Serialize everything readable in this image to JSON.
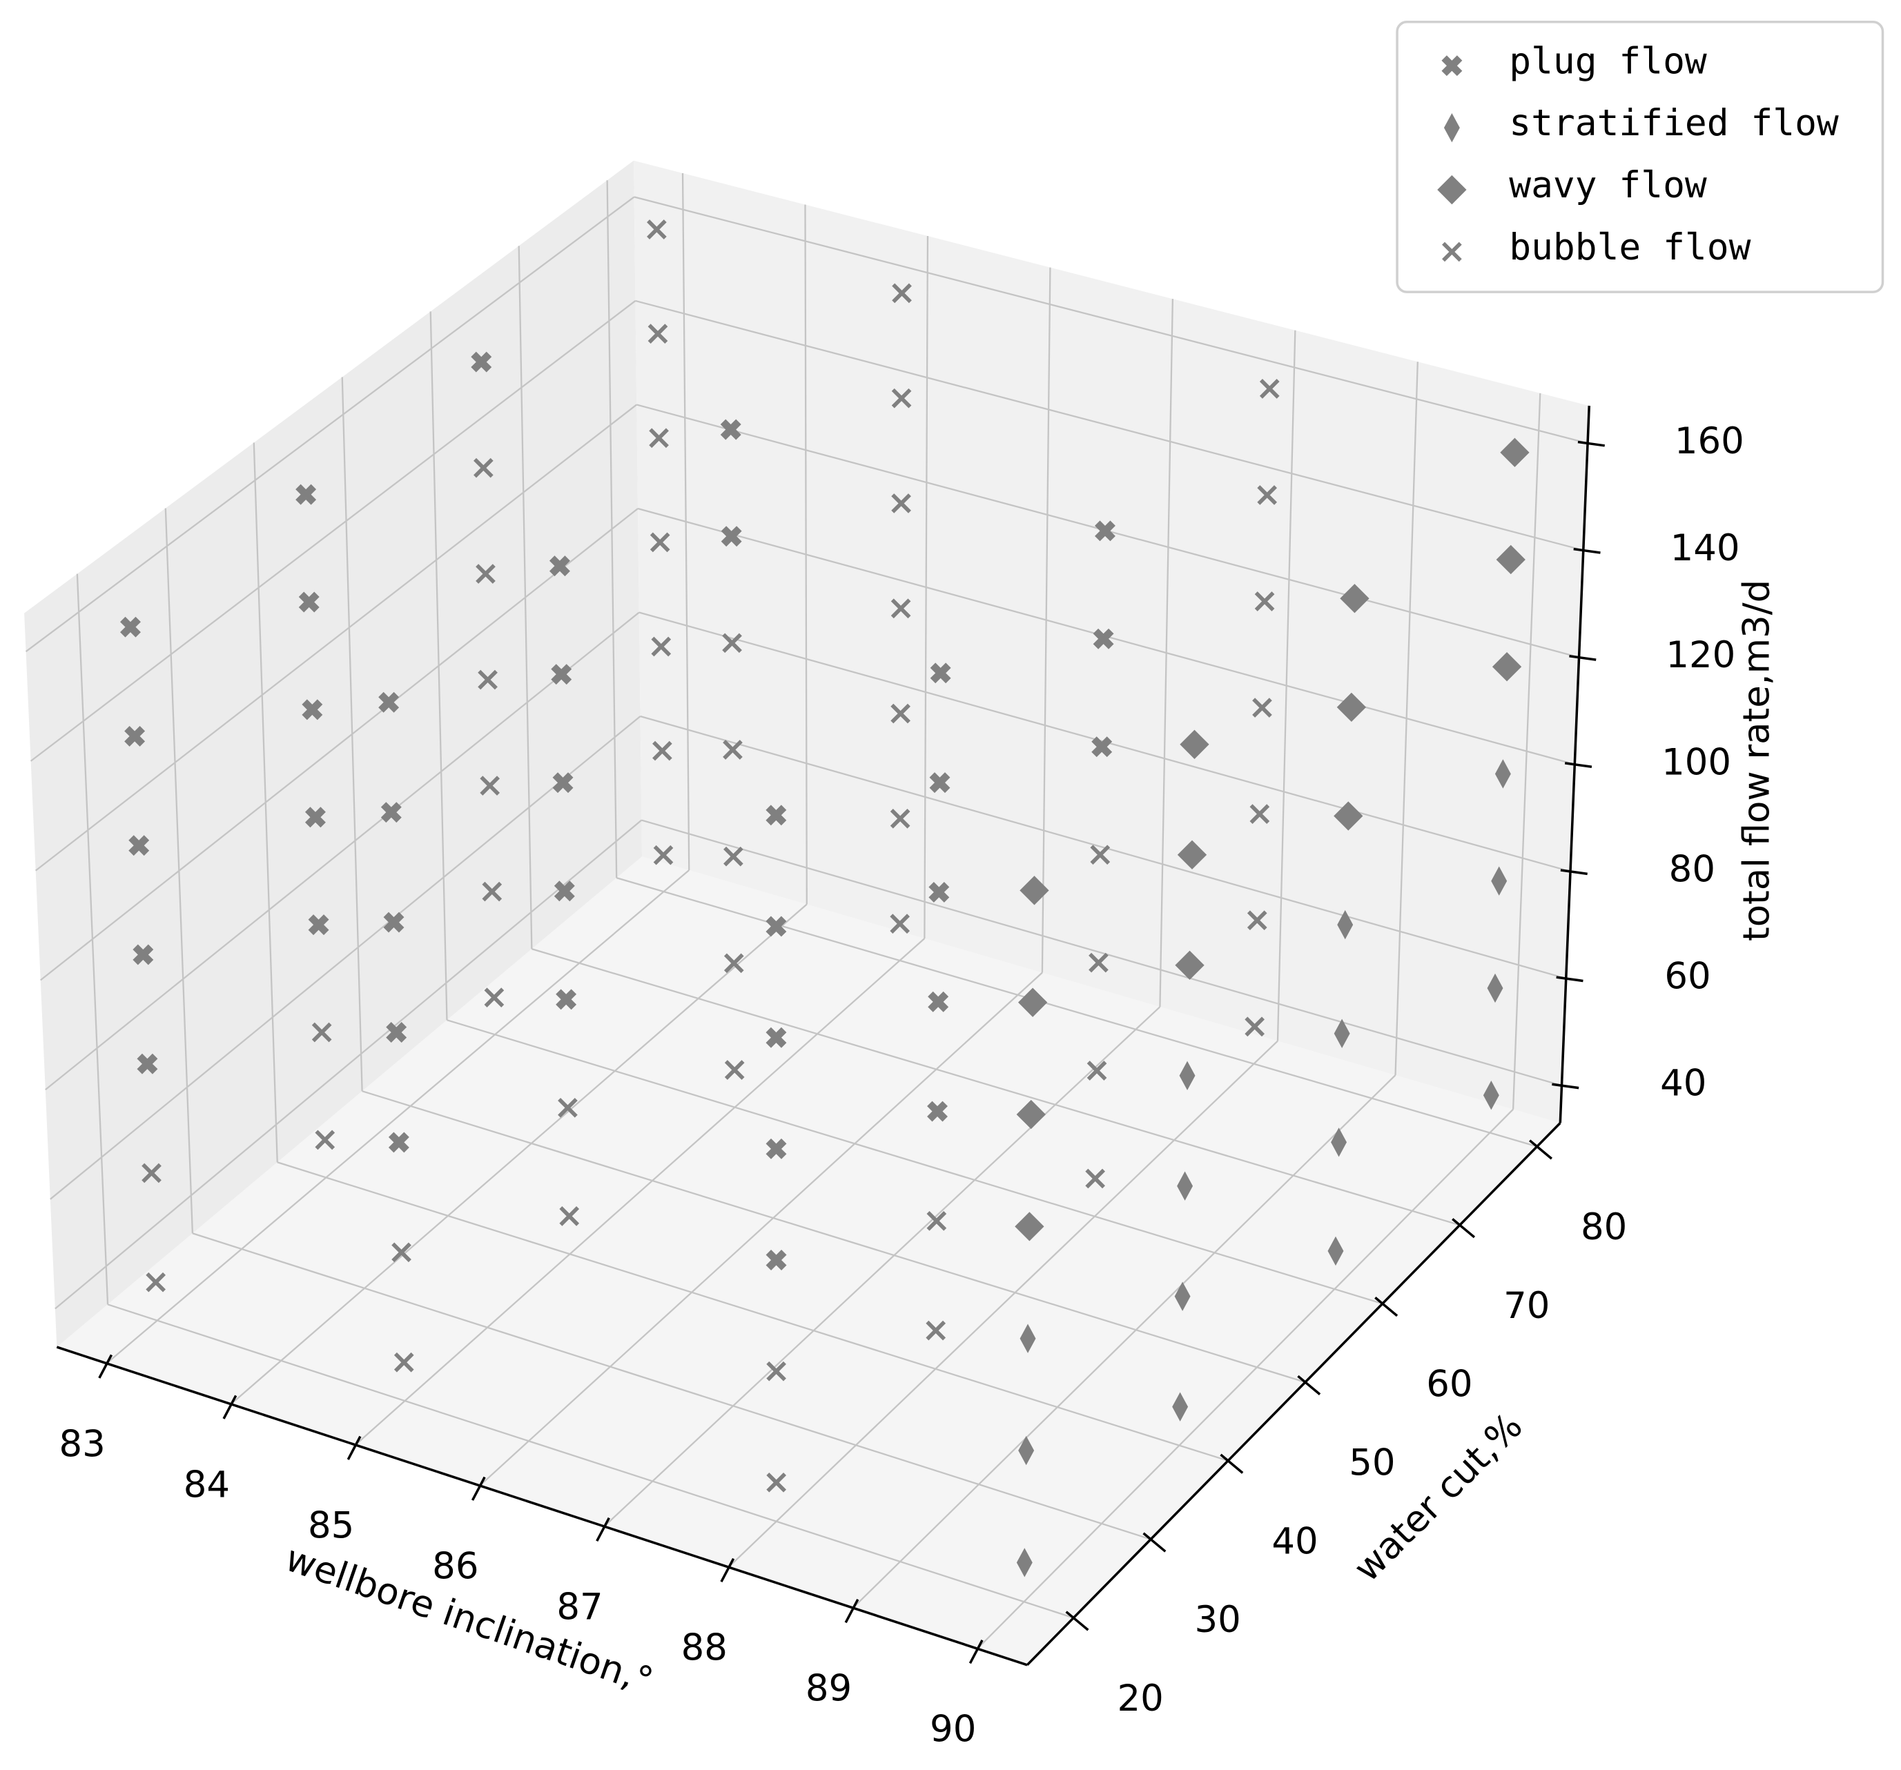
{
  "chart_data": {
    "type": "scatter3d",
    "xlabel": "wellbore inclination,°",
    "ylabel": "water cut,%",
    "zlabel": "total flow rate,m3/d",
    "xlim": [
      82.6,
      90.4
    ],
    "ylim": [
      14,
      83
    ],
    "zlim": [
      33,
      167
    ],
    "xticks": [
      83,
      84,
      85,
      86,
      87,
      88,
      89,
      90
    ],
    "yticks": [
      20,
      30,
      40,
      50,
      60,
      70,
      80
    ],
    "zticks": [
      40,
      60,
      80,
      100,
      120,
      140,
      160
    ],
    "grid": true,
    "legend": "upper right",
    "series": [
      {
        "name": "plug flow",
        "color": "#808080",
        "marker": "X",
        "x": [
          83,
          83,
          83,
          83,
          83,
          85,
          85,
          85,
          85,
          85,
          88,
          88,
          88,
          88,
          88,
          83,
          83,
          83,
          83,
          83,
          85,
          85,
          85,
          85,
          85,
          88,
          88,
          88,
          88,
          88,
          83,
          85,
          85,
          88,
          88,
          88
        ],
        "y": [
          20,
          20,
          20,
          20,
          20,
          20,
          20,
          20,
          20,
          20,
          20,
          20,
          20,
          20,
          20,
          40,
          40,
          40,
          40,
          40,
          40,
          40,
          40,
          40,
          40,
          40,
          40,
          40,
          40,
          40,
          60,
          60,
          60,
          60,
          60,
          60
        ],
        "z": [
          80,
          100,
          120,
          140,
          160,
          80,
          100,
          120,
          140,
          160,
          80,
          100,
          120,
          140,
          160,
          80,
          100,
          120,
          140,
          160,
          80,
          100,
          120,
          140,
          160,
          80,
          100,
          120,
          140,
          160,
          160,
          140,
          160,
          120,
          140,
          160
        ]
      },
      {
        "name": "stratified flow",
        "color": "#808080",
        "marker": "d",
        "x": [
          90,
          90,
          90,
          90,
          90,
          90,
          90,
          90,
          90,
          90,
          90,
          90,
          90,
          90,
          90
        ],
        "y": [
          20,
          20,
          20,
          40,
          40,
          40,
          40,
          60,
          60,
          60,
          60,
          80,
          80,
          80,
          80
        ],
        "z": [
          40,
          60,
          80,
          40,
          60,
          80,
          100,
          40,
          60,
          80,
          100,
          40,
          60,
          80,
          100
        ]
      },
      {
        "name": "wavy flow",
        "color": "#808080",
        "marker": "D",
        "x": [
          90,
          90,
          90,
          90,
          90,
          90,
          90,
          90,
          90,
          90,
          90,
          90,
          90
        ],
        "y": [
          20,
          20,
          20,
          20,
          40,
          40,
          40,
          60,
          60,
          60,
          80,
          80,
          80
        ],
        "z": [
          100,
          120,
          140,
          160,
          120,
          140,
          160,
          120,
          140,
          160,
          120,
          140,
          160
        ]
      },
      {
        "name": "bubble flow",
        "color": "#808080",
        "marker": "x",
        "x": [
          83,
          83,
          85,
          85,
          88,
          88,
          83,
          83,
          85,
          85,
          88,
          88,
          83,
          83,
          83,
          83,
          83,
          83,
          85,
          85,
          85,
          85,
          85,
          88,
          88,
          88,
          88,
          83,
          83,
          83,
          83,
          83,
          83,
          83,
          85,
          85,
          85,
          85,
          85,
          85,
          85,
          88,
          88,
          88,
          88,
          88,
          88,
          88
        ],
        "y": [
          20,
          20,
          20,
          20,
          20,
          20,
          40,
          40,
          40,
          40,
          40,
          40,
          60,
          60,
          60,
          60,
          60,
          60,
          60,
          60,
          60,
          60,
          60,
          60,
          60,
          60,
          60,
          80,
          80,
          80,
          80,
          80,
          80,
          80,
          80,
          80,
          80,
          80,
          80,
          80,
          80,
          80,
          80,
          80,
          80,
          80,
          80,
          80
        ],
        "z": [
          40,
          60,
          40,
          60,
          40,
          60,
          40,
          60,
          40,
          60,
          40,
          60,
          40,
          60,
          80,
          100,
          120,
          140,
          40,
          60,
          80,
          100,
          120,
          40,
          60,
          80,
          100,
          40,
          60,
          80,
          100,
          120,
          140,
          160,
          40,
          60,
          80,
          100,
          120,
          140,
          160,
          40,
          60,
          80,
          100,
          120,
          140,
          160
        ]
      }
    ]
  }
}
